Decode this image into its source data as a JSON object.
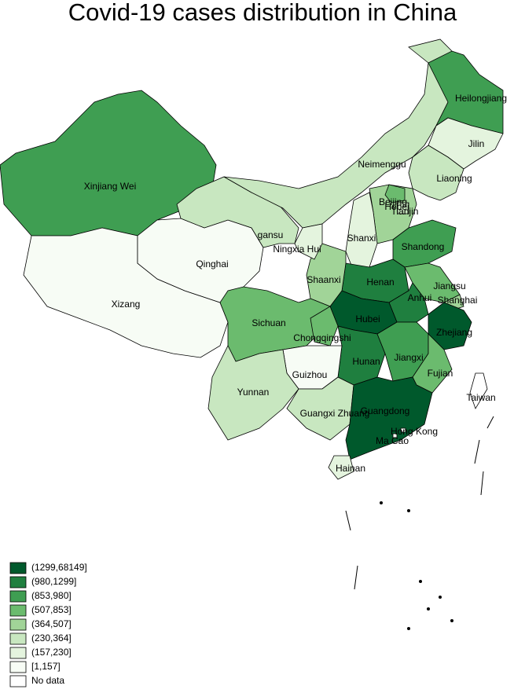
{
  "title": "Covid-19 cases distribution in China",
  "legend": [
    {
      "label": "(1299,68149]",
      "color": "#00592c"
    },
    {
      "label": "(980,1299]",
      "color": "#1f7f3f"
    },
    {
      "label": "(853,980]",
      "color": "#3f9e52"
    },
    {
      "label": "(507,853]",
      "color": "#6bbb6e"
    },
    {
      "label": "(364,507]",
      "color": "#a1d498"
    },
    {
      "label": "(230,364]",
      "color": "#c8e7c0"
    },
    {
      "label": "(157,230]",
      "color": "#e4f4de"
    },
    {
      "label": "[1,157]",
      "color": "#f7fcf5"
    },
    {
      "label": "No data",
      "color": "#ffffff"
    }
  ],
  "regions": [
    {
      "name": "Xinjiang Wei",
      "class": 2
    },
    {
      "name": "Xizang",
      "class": 7
    },
    {
      "name": "Qinghai",
      "class": 7
    },
    {
      "name": "gansu",
      "class": 5
    },
    {
      "name": "Neimenggu",
      "class": 5
    },
    {
      "name": "Heilongjiang",
      "class": 2
    },
    {
      "name": "Jilin",
      "class": 6
    },
    {
      "name": "Liaoning",
      "class": 5
    },
    {
      "name": "Hebei",
      "class": 4
    },
    {
      "name": "Beijing",
      "class": 3
    },
    {
      "name": "Tianjin",
      "class": 5
    },
    {
      "name": "Shanxi",
      "class": 6
    },
    {
      "name": "Shandong",
      "class": 2
    },
    {
      "name": "Henan",
      "class": 1
    },
    {
      "name": "Jiangsu",
      "class": 3
    },
    {
      "name": "Shanghai",
      "class": 4
    },
    {
      "name": "Anhui",
      "class": 1
    },
    {
      "name": "Zhejiang",
      "class": 0
    },
    {
      "name": "Hubei",
      "class": 0
    },
    {
      "name": "Shaanxi",
      "class": 4
    },
    {
      "name": "Ningxia Hui",
      "class": 6
    },
    {
      "name": "Sichuan",
      "class": 3
    },
    {
      "name": "Chongqingshi",
      "class": 3
    },
    {
      "name": "Hunan",
      "class": 1
    },
    {
      "name": "Jiangxi",
      "class": 2
    },
    {
      "name": "Fujian",
      "class": 3
    },
    {
      "name": "Guizhou",
      "class": 7
    },
    {
      "name": "Yunnan",
      "class": 5
    },
    {
      "name": "Guangxi Zhuang",
      "class": 5
    },
    {
      "name": "Guangdong",
      "class": 0
    },
    {
      "name": "Hainan",
      "class": 6
    },
    {
      "name": "Taiwan",
      "class": 8
    },
    {
      "name": "Hong Kong",
      "class": 7
    },
    {
      "name": "Ma Cao",
      "class": 7
    }
  ]
}
